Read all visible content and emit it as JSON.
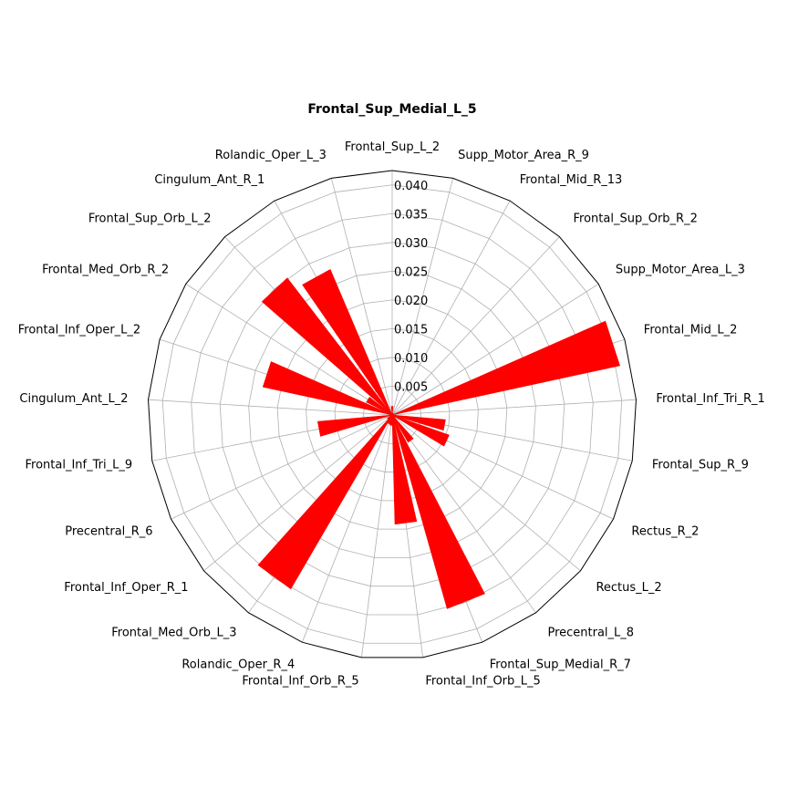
{
  "chart_data": {
    "type": "bar",
    "subtype": "polar",
    "title": "Frontal_Sup_Medial_L_5",
    "categories": [
      "Frontal_Sup_L_2",
      "Supp_Motor_Area_R_9",
      "Frontal_Mid_R_13",
      "Frontal_Sup_Orb_R_2",
      "Supp_Motor_Area_L_3",
      "Frontal_Mid_L_2",
      "Frontal_Inf_Tri_R_1",
      "Frontal_Sup_R_9",
      "Rectus_R_2",
      "Rectus_L_2",
      "Precentral_L_8",
      "Frontal_Sup_Medial_R_7",
      "Frontal_Inf_Orb_L_5",
      "Frontal_Inf_Orb_R_5",
      "Rolandic_Oper_R_4",
      "Frontal_Med_Orb_L_3",
      "Frontal_Inf_Oper_R_1",
      "Precentral_R_6",
      "Frontal_Inf_Tri_L_9",
      "Cingulum_Ant_L_2",
      "Frontal_Inf_Oper_L_2",
      "Frontal_Med_Orb_R_2",
      "Frontal_Sup_Orb_L_2",
      "Cingulum_Ant_R_1",
      "Rolandic_Oper_L_3"
    ],
    "values": [
      0.0015,
      0.0003,
      0.0003,
      0.0003,
      0.0003,
      0.0405,
      0.0003,
      0.0093,
      0.0105,
      0.0006,
      0.0055,
      0.035,
      0.019,
      0.0018,
      0.0016,
      0.035,
      0.001,
      0.0003,
      0.013,
      0.0005,
      0.023,
      0.005,
      0.03,
      0.0275,
      0.0003
    ],
    "start_direction": "north",
    "rotation": "clockwise",
    "rlim": [
      0,
      0.0425
    ],
    "r_ticks": [
      0.005,
      0.01,
      0.015,
      0.02,
      0.025,
      0.03,
      0.035,
      0.04
    ],
    "r_tick_labels": [
      "0.005",
      "0.010",
      "0.015",
      "0.020",
      "0.025",
      "0.030",
      "0.035",
      "0.040"
    ],
    "grid": true,
    "bar_color": "#ff0000",
    "grid_color": "#b0b0b0",
    "frame_color": "#000000"
  }
}
